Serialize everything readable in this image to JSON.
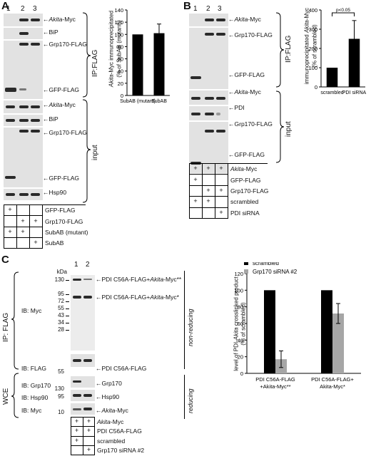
{
  "panelA": {
    "letter": "A",
    "lanes": [
      "1",
      "2",
      "3"
    ],
    "ip_label": "IP:FLAG",
    "input_label": "input",
    "blot_labels": [
      {
        "pre": "",
        "it": "Akita",
        "post": "-Myc"
      },
      {
        "pre": "BiP",
        "it": "",
        "post": ""
      },
      {
        "pre": "Grp170-FLAG",
        "it": "",
        "post": ""
      },
      {
        "pre": "GFP-FLAG",
        "it": "",
        "post": ""
      },
      {
        "pre": "",
        "it": "Akita",
        "post": "-Myc"
      },
      {
        "pre": "BiP",
        "it": "",
        "post": ""
      },
      {
        "pre": "Grp170-FLAG",
        "it": "",
        "post": ""
      },
      {
        "pre": "GFP-FLAG",
        "it": "",
        "post": ""
      },
      {
        "pre": "Hsp90",
        "it": "",
        "post": ""
      }
    ],
    "table": [
      {
        "label": "GFP-FLAG",
        "marks": [
          "+",
          "",
          ""
        ]
      },
      {
        "label": "Grp170-FLAG",
        "marks": [
          "",
          "+",
          "+"
        ]
      },
      {
        "label": "SubAB (mutant)",
        "marks": [
          "+",
          "+",
          ""
        ]
      },
      {
        "label": "SubAB",
        "marks": [
          "",
          "",
          "+"
        ]
      }
    ],
    "chart_ylabel_1": "immunoprecipitated Akita-Myc",
    "chart_ylabel_2": "(% of SubAB (mutant))"
  },
  "panelB": {
    "letter": "B",
    "lanes": [
      "1",
      "2",
      "3"
    ],
    "ip_label": "IP:FLAG",
    "input_label": "input",
    "blot_labels": [
      {
        "pre": "",
        "it": "Akita",
        "post": "-Myc"
      },
      {
        "pre": "Grp170-FLAG",
        "it": "",
        "post": ""
      },
      {
        "pre": "GFP-FLAG",
        "it": "",
        "post": ""
      },
      {
        "pre": "",
        "it": "Akita",
        "post": "-Myc"
      },
      {
        "pre": "PDI",
        "it": "",
        "post": ""
      },
      {
        "pre": "Grp170-FLAG",
        "it": "",
        "post": ""
      },
      {
        "pre": "GFP-FLAG",
        "it": "",
        "post": ""
      }
    ],
    "table": [
      {
        "label": "Akita-Myc",
        "italic": true,
        "marks": [
          "+",
          "+",
          "+"
        ]
      },
      {
        "label": "GFP-FLAG",
        "marks": [
          "+",
          "",
          ""
        ]
      },
      {
        "label": "Grp170-FLAG",
        "marks": [
          "",
          "+",
          "+"
        ]
      },
      {
        "label": "scrambled",
        "marks": [
          "+",
          "+",
          ""
        ]
      },
      {
        "label": "PDI siRNA",
        "marks": [
          "",
          "",
          "+"
        ]
      }
    ],
    "chart_ylabel_1": "immunoprecipitated Akita-Myc",
    "chart_ylabel_2": "(% of scrambled)",
    "sig": "p<0.05"
  },
  "panelC": {
    "letter": "C",
    "lanes": [
      "1",
      "2"
    ],
    "kda": "kDa",
    "mw_myc": [
      "130",
      "95",
      "72",
      "55",
      "43",
      "34",
      "28"
    ],
    "mw_flag": [
      "55"
    ],
    "mw_grp170": [
      "130"
    ],
    "mw_hsp90": [
      "95"
    ],
    "mw_myc2": [
      "10"
    ],
    "ib_labels": [
      "IB: Myc",
      "IB: FLAG",
      "IB: Grp170",
      "IB: Hsp90",
      "IB: Myc"
    ],
    "ip_label": "IP: FLAG",
    "wce_label": "WCE",
    "nonreducing": "non-reducing",
    "reducing": "reducing",
    "band_labels": [
      {
        "pre": "PDI C56A-FLAG+",
        "it": "Akita",
        "post": "-Myc**"
      },
      {
        "pre": "PDI C56A-FLAG+",
        "it": "Akita",
        "post": "-Myc*"
      },
      {
        "pre": "PDI C56A-FLAG",
        "it": "",
        "post": ""
      },
      {
        "pre": "Grp170",
        "it": "",
        "post": ""
      },
      {
        "pre": "Hsp90",
        "it": "",
        "post": ""
      },
      {
        "pre": "",
        "it": "Akita",
        "post": "-Myc"
      }
    ],
    "table": [
      {
        "label": "Akita-Myc",
        "italic": true,
        "marks": [
          "+",
          "+"
        ]
      },
      {
        "label": "PDI C56A-FLAG",
        "marks": [
          "+",
          "+"
        ]
      },
      {
        "label": "scrambled",
        "marks": [
          "+",
          ""
        ]
      },
      {
        "label": "Grp170 siRNA #2",
        "marks": [
          "",
          "+"
        ]
      }
    ],
    "chart_ylabel_1": "level of PDI-Akita crosslinked product",
    "chart_ylabel_2": "(% of scrambled)"
  },
  "chart_data": [
    {
      "type": "bar",
      "panel": "A",
      "categories": [
        "SubAB (mutant)",
        "SubAB"
      ],
      "values": [
        100,
        102
      ],
      "errors": [
        0,
        15
      ],
      "ylim": [
        0,
        140
      ],
      "yticks": [
        "0",
        "20",
        "40",
        "60",
        "80",
        "100",
        "120",
        "140"
      ],
      "ylabel": "immunoprecipitated Akita-Myc (% of SubAB (mutant))",
      "colors": [
        "#000000"
      ]
    },
    {
      "type": "bar",
      "panel": "B",
      "categories": [
        "scrambled",
        "PDI siRNA"
      ],
      "values": [
        100,
        250
      ],
      "errors": [
        0,
        95
      ],
      "ylim": [
        0,
        400
      ],
      "yticks": [
        "0",
        "100",
        "200",
        "300",
        "400"
      ],
      "ylabel": "immunoprecipitated Akita-Myc (% of scrambled)",
      "annotation": "p<0.05",
      "colors": [
        "#000000"
      ]
    },
    {
      "type": "bar",
      "panel": "C",
      "categories": [
        "PDI C56A-FLAG +Akita-Myc**",
        "PDI C56A-FLAG+ Akita-Myc*"
      ],
      "category_lines": [
        [
          "PDI C56A-FLAG",
          "+Akita-Myc**"
        ],
        [
          "PDI C56A-FLAG+",
          "Akita-Myc*"
        ]
      ],
      "series": [
        {
          "name": "scrambled",
          "values": [
            100,
            100
          ],
          "errors": [
            0,
            0
          ],
          "color": "#000000"
        },
        {
          "name": "Grp170 siRNA #2",
          "values": [
            17,
            72
          ],
          "errors": [
            10,
            12
          ],
          "color": "#a6a6a6"
        }
      ],
      "ylim": [
        0,
        120
      ],
      "yticks": [
        "0",
        "20",
        "40",
        "60",
        "80",
        "100",
        "120"
      ],
      "ylabel": "level of PDI-Akita crosslinked product (% of scrambled)",
      "legend": "top-left"
    }
  ]
}
